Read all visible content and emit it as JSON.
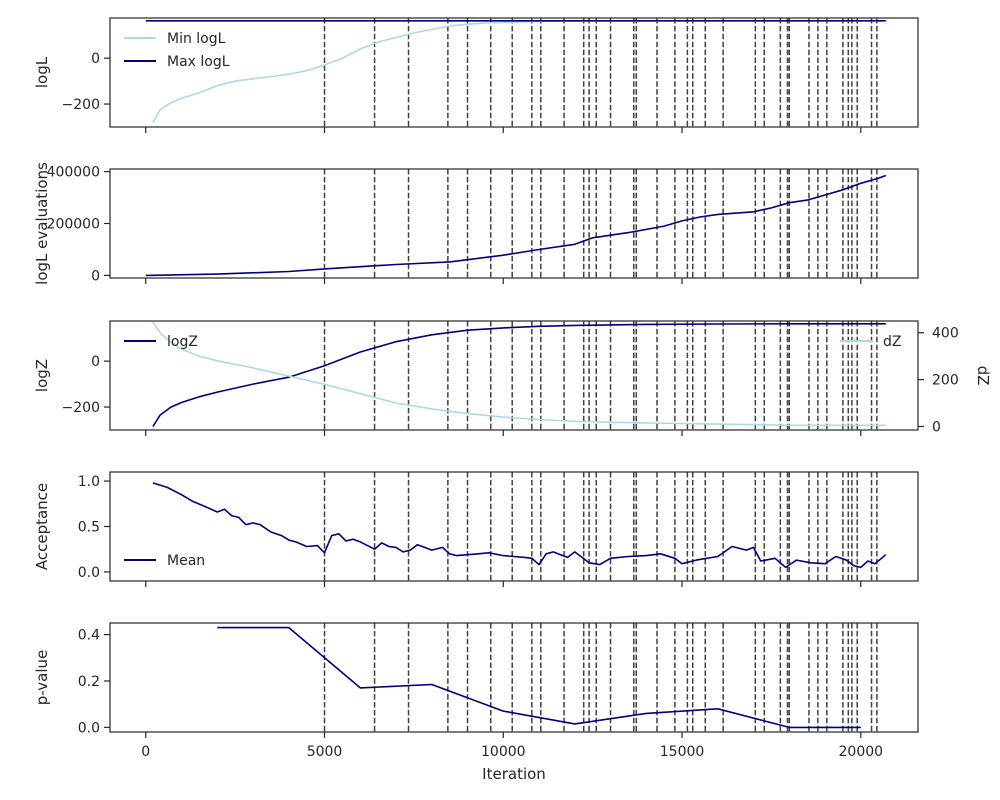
{
  "colors": {
    "min_logL": "#add8e6",
    "max_logL": "#000080",
    "vline": "#404040",
    "frame": "#262626"
  },
  "chart_data": [
    {
      "type": "line",
      "ylabel": "logL",
      "xlim": [
        -1000,
        21600
      ],
      "ylim": [
        -300,
        175
      ],
      "yticks": [
        0,
        -200
      ],
      "yticklabels": [
        "0",
        "−200"
      ],
      "legend": "top-left",
      "series": [
        {
          "name": "Min logL",
          "color": "#add8e6",
          "x": [
            200,
            400,
            700,
            1000,
            1500,
            2000,
            2500,
            3000,
            3500,
            4000,
            4500,
            5000,
            5500,
            6000,
            6500,
            7000,
            7500,
            8000,
            8500,
            9000,
            9500,
            10000,
            11000,
            12000,
            13000,
            14000,
            16000,
            18000,
            20000,
            20700
          ],
          "y": [
            -280,
            -225,
            -195,
            -175,
            -150,
            -120,
            -100,
            -90,
            -80,
            -70,
            -55,
            -30,
            0,
            40,
            70,
            90,
            110,
            125,
            140,
            148,
            153,
            156,
            160,
            161,
            162,
            162,
            163,
            163,
            163,
            163
          ]
        },
        {
          "name": "Max logL",
          "color": "#000080",
          "x": [
            0,
            20700
          ],
          "y": [
            163,
            163
          ]
        }
      ]
    },
    {
      "type": "line",
      "ylabel": "logL evaluations",
      "xlim": [
        -1000,
        21600
      ],
      "ylim": [
        -10000,
        410000
      ],
      "yticks": [
        400000,
        200000,
        0
      ],
      "yticklabels": [
        "400000",
        "200000",
        "0"
      ],
      "series": [
        {
          "color": "#000080",
          "x": [
            0,
            2000,
            4000,
            5000,
            7000,
            8500,
            10000,
            11000,
            12000,
            12500,
            13500,
            14500,
            15000,
            15500,
            16000,
            17000,
            17500,
            18000,
            18500,
            19000,
            19500,
            20000,
            20500,
            20700
          ],
          "y": [
            0,
            5000,
            15000,
            25000,
            42000,
            52000,
            78000,
            100000,
            120000,
            145000,
            165000,
            190000,
            210000,
            225000,
            235000,
            245000,
            260000,
            280000,
            290000,
            310000,
            330000,
            355000,
            375000,
            385000
          ]
        }
      ]
    },
    {
      "type": "line",
      "ylabel": "logZ",
      "ylabel_right": "dZ",
      "xlim": [
        -1000,
        21600
      ],
      "ylim": [
        -300,
        175
      ],
      "yticks": [
        0,
        -200
      ],
      "yticklabels": [
        "0",
        "−200"
      ],
      "ylim_right": [
        -15,
        450
      ],
      "yticks_right": [
        400,
        200,
        0
      ],
      "yticklabels_right": [
        "400",
        "200",
        "0"
      ],
      "legend_left": "top-left",
      "legend_right": "top-right",
      "series": [
        {
          "name": "logZ",
          "color": "#000080",
          "axis": "left",
          "x": [
            200,
            400,
            700,
            1000,
            1500,
            2000,
            3000,
            4000,
            5000,
            6000,
            7000,
            8000,
            9000,
            10000,
            11000,
            12000,
            14000,
            16000,
            18000,
            20700
          ],
          "y": [
            -285,
            -235,
            -200,
            -180,
            -155,
            -135,
            -100,
            -70,
            -20,
            40,
            85,
            115,
            135,
            145,
            152,
            156,
            160,
            162,
            163,
            163
          ]
        },
        {
          "name": "dZ",
          "color": "#add8e6",
          "axis": "right",
          "x": [
            200,
            400,
            700,
            1000,
            1500,
            2000,
            3000,
            4000,
            5000,
            6000,
            7000,
            8000,
            9000,
            10000,
            11000,
            12000,
            14000,
            16000,
            18000,
            20700
          ],
          "y": [
            445,
            400,
            360,
            330,
            300,
            280,
            250,
            215,
            180,
            140,
            100,
            75,
            55,
            40,
            30,
            22,
            15,
            10,
            5,
            5
          ]
        }
      ]
    },
    {
      "type": "line",
      "ylabel": "Acceptance",
      "xlim": [
        -1000,
        21600
      ],
      "ylim": [
        -0.1,
        1.1
      ],
      "yticks": [
        1.0,
        0.5,
        0.0
      ],
      "yticklabels": [
        "1.0",
        "0.5",
        "0.0"
      ],
      "legend": "bottom-left",
      "series": [
        {
          "name": "Mean",
          "color": "#000080",
          "x": [
            200,
            600,
            1000,
            1300,
            1600,
            2000,
            2200,
            2400,
            2600,
            2800,
            3000,
            3200,
            3500,
            3800,
            4000,
            4200,
            4500,
            4800,
            5000,
            5200,
            5400,
            5600,
            5800,
            6000,
            6400,
            6600,
            6800,
            7000,
            7200,
            7400,
            7600,
            7800,
            8000,
            8300,
            8500,
            8700,
            9000,
            9300,
            9600,
            10000,
            10300,
            10600,
            10800,
            11000,
            11200,
            11400,
            11600,
            11800,
            12000,
            12400,
            12700,
            13000,
            13500,
            14000,
            14400,
            14800,
            15000,
            15400,
            16000,
            16400,
            16800,
            17000,
            17200,
            17600,
            17900,
            18200,
            18600,
            19000,
            19300,
            19600,
            19800,
            20000,
            20200,
            20400,
            20700
          ],
          "y": [
            0.98,
            0.93,
            0.85,
            0.78,
            0.73,
            0.66,
            0.69,
            0.62,
            0.6,
            0.52,
            0.54,
            0.52,
            0.44,
            0.4,
            0.35,
            0.33,
            0.28,
            0.29,
            0.21,
            0.4,
            0.42,
            0.34,
            0.36,
            0.33,
            0.25,
            0.32,
            0.28,
            0.27,
            0.22,
            0.24,
            0.3,
            0.27,
            0.24,
            0.27,
            0.2,
            0.18,
            0.19,
            0.2,
            0.21,
            0.18,
            0.17,
            0.16,
            0.15,
            0.08,
            0.2,
            0.22,
            0.19,
            0.16,
            0.22,
            0.1,
            0.08,
            0.15,
            0.17,
            0.18,
            0.2,
            0.15,
            0.09,
            0.13,
            0.17,
            0.28,
            0.24,
            0.27,
            0.12,
            0.15,
            0.05,
            0.13,
            0.1,
            0.09,
            0.17,
            0.13,
            0.07,
            0.05,
            0.12,
            0.09,
            0.19
          ]
        }
      ]
    },
    {
      "type": "line",
      "ylabel": "p-value",
      "xlabel": "Iteration",
      "xlim": [
        -1000,
        21600
      ],
      "ylim": [
        -0.02,
        0.45
      ],
      "yticks": [
        0.4,
        0.2,
        0.0
      ],
      "yticklabels": [
        "0.4",
        "0.2",
        "0.0"
      ],
      "xticks": [
        0,
        5000,
        10000,
        15000,
        20000
      ],
      "xticklabels": [
        "0",
        "5000",
        "10000",
        "15000",
        "20000"
      ],
      "series": [
        {
          "color": "#000080",
          "x": [
            2000,
            4000,
            6000,
            8000,
            10000,
            12000,
            14000,
            16000,
            18000,
            20000
          ],
          "y": [
            0.43,
            0.43,
            0.17,
            0.185,
            0.07,
            0.015,
            0.06,
            0.08,
            0.0,
            0.0
          ]
        }
      ]
    }
  ],
  "vlines": [
    5000,
    6400,
    7350,
    8450,
    9000,
    9650,
    10250,
    10800,
    11050,
    11700,
    12250,
    12400,
    12600,
    13000,
    13650,
    13720,
    14300,
    14800,
    15150,
    15300,
    15650,
    16150,
    17050,
    17300,
    17750,
    17950,
    18000,
    18550,
    18800,
    19050,
    19500,
    19650,
    19750,
    19900,
    20300,
    20450
  ]
}
